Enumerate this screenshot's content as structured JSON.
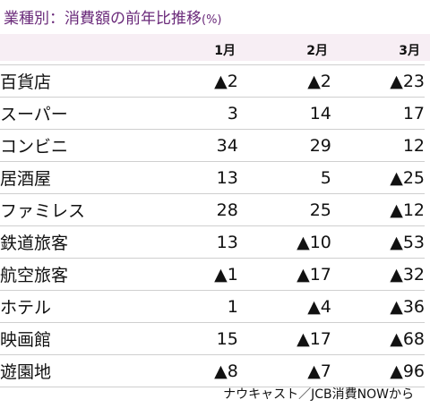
{
  "title": "業種別：消費額の前年比推移",
  "title_unit": "(%)",
  "columns": [
    "1月",
    "2月",
    "3月"
  ],
  "source": "ナウキャスト／JCB消費NOWから",
  "colors": {
    "title": "#6a2a7a",
    "header_band": "#f7eef4",
    "rule": "#cfcfcf"
  },
  "chart_data": {
    "type": "table",
    "title": "業種別：消費額の前年比推移",
    "unit": "%",
    "columns": [
      "1月",
      "2月",
      "3月"
    ],
    "rows": [
      {
        "label": "百貨店",
        "values": [
          -2,
          -2,
          -23
        ],
        "display": [
          "▲2",
          "▲2",
          "▲23"
        ]
      },
      {
        "label": "スーパー",
        "values": [
          3,
          14,
          17
        ],
        "display": [
          "3",
          "14",
          "17"
        ]
      },
      {
        "label": "コンビニ",
        "values": [
          34,
          29,
          12
        ],
        "display": [
          "34",
          "29",
          "12"
        ]
      },
      {
        "label": "居酒屋",
        "values": [
          13,
          5,
          -25
        ],
        "display": [
          "13",
          "5",
          "▲25"
        ]
      },
      {
        "label": "ファミレス",
        "values": [
          28,
          25,
          -12
        ],
        "display": [
          "28",
          "25",
          "▲12"
        ]
      },
      {
        "label": "鉄道旅客",
        "values": [
          13,
          -10,
          -53
        ],
        "display": [
          "13",
          "▲10",
          "▲53"
        ]
      },
      {
        "label": "航空旅客",
        "values": [
          -1,
          -17,
          -32
        ],
        "display": [
          "▲1",
          "▲17",
          "▲32"
        ]
      },
      {
        "label": "ホテル",
        "values": [
          1,
          -4,
          -36
        ],
        "display": [
          "1",
          "▲4",
          "▲36"
        ]
      },
      {
        "label": "映画館",
        "values": [
          15,
          -17,
          -68
        ],
        "display": [
          "15",
          "▲17",
          "▲68"
        ]
      },
      {
        "label": "遊園地",
        "values": [
          -8,
          -7,
          -96
        ],
        "display": [
          "▲8",
          "▲7",
          "▲96"
        ]
      }
    ]
  }
}
